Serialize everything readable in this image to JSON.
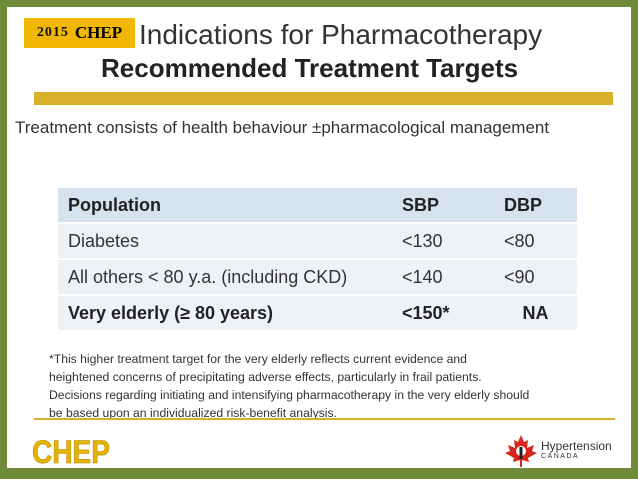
{
  "badge": {
    "year": "2015",
    "name": "CHEP"
  },
  "title": {
    "line1": "Indications for Pharmacotherapy",
    "line2": "Recommended Treatment Targets"
  },
  "intro": "Treatment consists of health behaviour ±pharmacological management",
  "table": {
    "headers": [
      "Population",
      "SBP",
      "DBP"
    ],
    "rows": [
      {
        "population": "Diabetes",
        "sbp": "<130",
        "dbp": "<80",
        "bold": false
      },
      {
        "population": "All others < 80 y.a. (including CKD)",
        "sbp": "<140",
        "dbp": "<90",
        "bold": false
      },
      {
        "population": "Very elderly (≥ 80 years)",
        "sbp": "<150*",
        "dbp": "NA",
        "bold": true
      }
    ]
  },
  "footnote": {
    "line1": "*This higher treatment target for the very elderly reflects current evidence and",
    "line2": "heightened concerns of precipitating adverse effects, particularly in frail patients.",
    "line3": "Decisions regarding initiating and intensifying pharmacotherapy in the very elderly should",
    "line4": "be based upon an individualized risk-benefit analysis."
  },
  "logos": {
    "chep": "CHEP",
    "hypertension_canada": {
      "name": "Hypertension",
      "sub": "CANADA"
    }
  },
  "colors": {
    "frame": "#6f8b3a",
    "badge": "#f2b705",
    "gold_rule": "#d8b02a",
    "table_header": "#d6e3ef",
    "table_row": "#eef2f6",
    "maple_red": "#d7261e"
  }
}
